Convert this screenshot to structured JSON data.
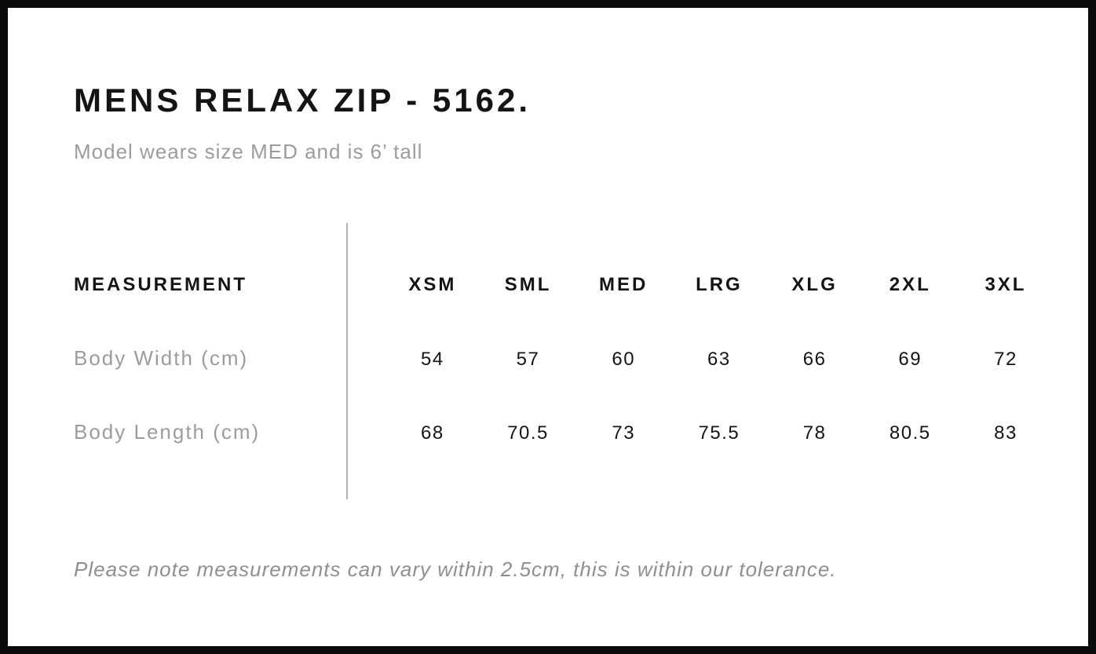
{
  "page": {
    "title": "MENS RELAX ZIP - 5162.",
    "subtitle": "Model wears size MED and is 6’ tall",
    "tolerance_note": "Please note measurements can vary within 2.5cm, this is within our tolerance."
  },
  "size_chart": {
    "header_label": "MEASUREMENT",
    "sizes": [
      "XSM",
      "SML",
      "MED",
      "LRG",
      "XLG",
      "2XL",
      "3XL"
    ],
    "rows": [
      {
        "label": "Body Width (cm)",
        "values": [
          "54",
          "57",
          "60",
          "63",
          "66",
          "69",
          "72"
        ]
      },
      {
        "label": "Body Length (cm)",
        "values": [
          "68",
          "70.5",
          "73",
          "75.5",
          "78",
          "80.5",
          "83"
        ]
      }
    ]
  },
  "colors": {
    "text_primary": "#141414",
    "text_secondary": "#9c9c9c",
    "text_note": "#8f8f8f",
    "divider": "#b3b3b3",
    "frame": "#0a0a0a"
  }
}
